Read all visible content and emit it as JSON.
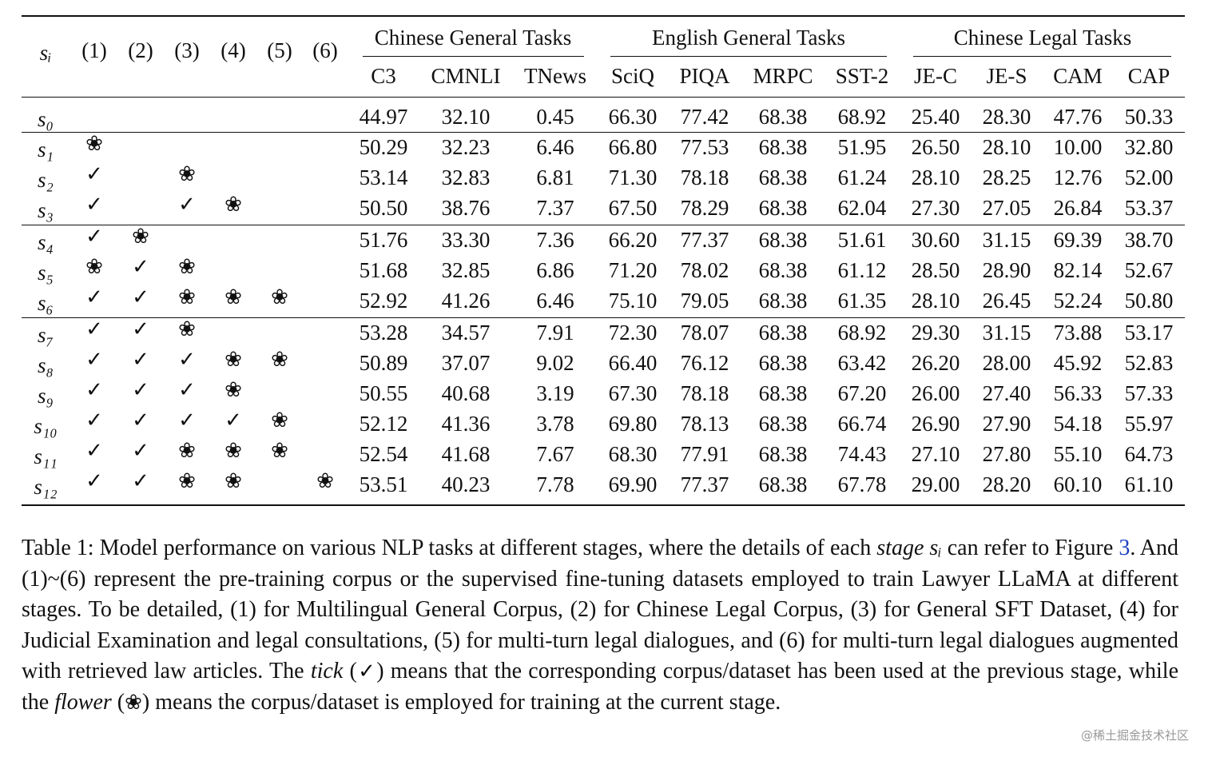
{
  "table": {
    "stage_header": "sᵢ",
    "source_columns": [
      "(1)",
      "(2)",
      "(3)",
      "(4)",
      "(5)",
      "(6)"
    ],
    "groups": [
      {
        "name": "Chinese General Tasks",
        "columns": [
          "C3",
          "CMNLI",
          "TNews"
        ]
      },
      {
        "name": "English General Tasks",
        "columns": [
          "SciQ",
          "PIQA",
          "MRPC",
          "SST-2"
        ]
      },
      {
        "name": "Chinese Legal Tasks",
        "columns": [
          "JE-C",
          "JE-S",
          "CAM",
          "CAP"
        ]
      }
    ],
    "rows": [
      {
        "stage": "s₀",
        "marks": [
          null,
          null,
          null,
          null,
          null,
          null
        ],
        "scores": [
          "44.97",
          "32.10",
          "0.45",
          "66.30",
          "77.42",
          "68.38",
          "68.92",
          "25.40",
          "28.30",
          "47.76",
          "50.33"
        ]
      },
      {
        "stage": "s₁",
        "marks": [
          "❀",
          null,
          null,
          null,
          null,
          null
        ],
        "scores": [
          "50.29",
          "32.23",
          "6.46",
          "66.80",
          "77.53",
          "68.38",
          "51.95",
          "26.50",
          "28.10",
          "10.00",
          "32.80"
        ]
      },
      {
        "stage": "s₂",
        "marks": [
          "✓",
          null,
          "❀",
          null,
          null,
          null
        ],
        "scores": [
          "53.14",
          "32.83",
          "6.81",
          "71.30",
          "78.18",
          "68.38",
          "61.24",
          "28.10",
          "28.25",
          "12.76",
          "52.00"
        ]
      },
      {
        "stage": "s₃",
        "marks": [
          "✓",
          null,
          "✓",
          "❀",
          null,
          null
        ],
        "scores": [
          "50.50",
          "38.76",
          "7.37",
          "67.50",
          "78.29",
          "68.38",
          "62.04",
          "27.30",
          "27.05",
          "26.84",
          "53.37"
        ]
      },
      {
        "stage": "s₄",
        "marks": [
          "✓",
          "❀",
          null,
          null,
          null,
          null
        ],
        "scores": [
          "51.76",
          "33.30",
          "7.36",
          "66.20",
          "77.37",
          "68.38",
          "51.61",
          "30.60",
          "31.15",
          "69.39",
          "38.70"
        ]
      },
      {
        "stage": "s₅",
        "marks": [
          "❀",
          "✓",
          "❀",
          null,
          null,
          null
        ],
        "scores": [
          "51.68",
          "32.85",
          "6.86",
          "71.20",
          "78.02",
          "68.38",
          "61.12",
          "28.50",
          "28.90",
          "82.14",
          "52.67"
        ]
      },
      {
        "stage": "s₆",
        "marks": [
          "✓",
          "✓",
          "❀",
          "❀",
          "❀",
          null
        ],
        "scores": [
          "52.92",
          "41.26",
          "6.46",
          "75.10",
          "79.05",
          "68.38",
          "61.35",
          "28.10",
          "26.45",
          "52.24",
          "50.80"
        ]
      },
      {
        "stage": "s₇",
        "marks": [
          "✓",
          "✓",
          "❀",
          null,
          null,
          null
        ],
        "scores": [
          "53.28",
          "34.57",
          "7.91",
          "72.30",
          "78.07",
          "68.38",
          "68.92",
          "29.30",
          "31.15",
          "73.88",
          "53.17"
        ]
      },
      {
        "stage": "s₈",
        "marks": [
          "✓",
          "✓",
          "✓",
          "❀",
          "❀",
          null
        ],
        "scores": [
          "50.89",
          "37.07",
          "9.02",
          "66.40",
          "76.12",
          "68.38",
          "63.42",
          "26.20",
          "28.00",
          "45.92",
          "52.83"
        ]
      },
      {
        "stage": "s₉",
        "marks": [
          "✓",
          "✓",
          "✓",
          "❀",
          null,
          null
        ],
        "scores": [
          "50.55",
          "40.68",
          "3.19",
          "67.30",
          "78.18",
          "68.38",
          "67.20",
          "26.00",
          "27.40",
          "56.33",
          "57.33"
        ]
      },
      {
        "stage": "s₁₀",
        "marks": [
          "✓",
          "✓",
          "✓",
          "✓",
          "❀",
          null
        ],
        "scores": [
          "52.12",
          "41.36",
          "3.78",
          "69.80",
          "78.13",
          "68.38",
          "66.74",
          "26.90",
          "27.90",
          "54.18",
          "55.97"
        ]
      },
      {
        "stage": "s₁₁",
        "marks": [
          "✓",
          "✓",
          "❀",
          "❀",
          "❀",
          null
        ],
        "scores": [
          "52.54",
          "41.68",
          "7.67",
          "68.30",
          "77.91",
          "68.38",
          "74.43",
          "27.10",
          "27.80",
          "55.10",
          "64.73"
        ]
      },
      {
        "stage": "s₁₂",
        "marks": [
          "✓",
          "✓",
          "❀",
          "❀",
          null,
          "❀"
        ],
        "scores": [
          "53.51",
          "40.23",
          "7.78",
          "69.90",
          "77.37",
          "68.38",
          "67.78",
          "29.00",
          "28.20",
          "60.10",
          "61.10"
        ]
      }
    ]
  },
  "caption": [
    "Table 1:  Model performance on various NLP tasks at different stages, where the details of each ",
    "stage sᵢ",
    " can refer to Figure ",
    "3",
    ". And (1)~(6) represent the pre-training corpus or the supervised fine-tuning datasets employed to train Lawyer LLaMA at different stages. To be detailed, (1) for Multilingual General Corpus, (2) for Chinese Legal Corpus, (3) for General SFT Dataset, (4) for Judicial Examination and legal consultations, (5) for multi-turn legal dialogues, and (6) for multi-turn legal dialogues augmented with retrieved law articles. The ",
    "tick",
    " (",
    "✓",
    ") means that the corresponding corpus/dataset has been used at the previous stage, while the ",
    "flower",
    " (",
    "❀",
    ") means the corpus/dataset is employed for training at the current stage."
  ],
  "watermark": "@稀土掘金技术社区"
}
